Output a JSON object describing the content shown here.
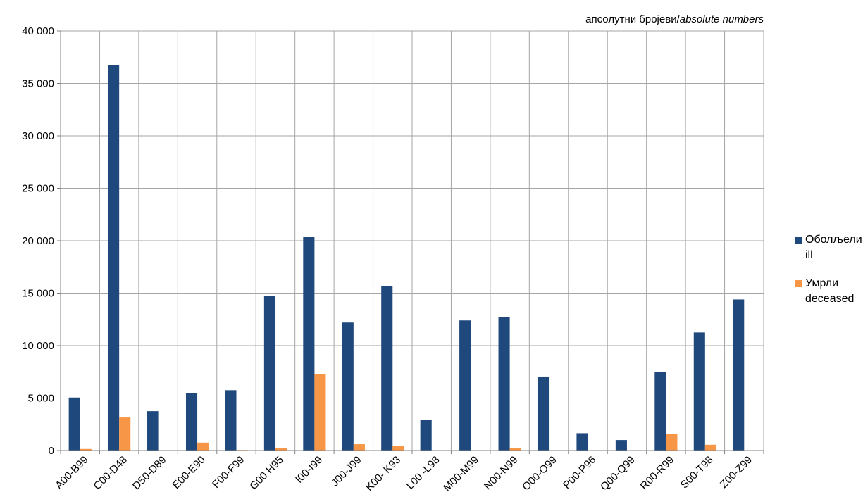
{
  "chart_data": {
    "type": "bar",
    "unit_label_main": "апсолутни бројеви/",
    "unit_label_italic": "absolute numbers",
    "categories": [
      "A00-B99",
      "C00-D48",
      "D50-D89",
      "E00-E90",
      "F00-F99",
      "G00 H95",
      "I00-I99",
      "J00-J99",
      "K00- K93",
      "L00 -L98",
      "M00-M99",
      "N00-N99",
      "O00-O99",
      "P00-P96",
      "Q00-Q99",
      "R00-R99",
      "S00-T98",
      "Z00-Z99"
    ],
    "series": [
      {
        "name": "Оболљели ill",
        "label_line1": "Оболљели",
        "label_line2": "ill",
        "color": "#1f497d",
        "values": [
          5050,
          36750,
          3750,
          5450,
          5750,
          14750,
          20350,
          12200,
          15650,
          2900,
          12400,
          12750,
          7050,
          1650,
          1000,
          7450,
          11250,
          14400
        ]
      },
      {
        "name": "Умрли deceased",
        "label_line1": "Умрли",
        "label_line2": "deceased",
        "color": "#f79646",
        "values": [
          150,
          3150,
          0,
          750,
          50,
          200,
          7250,
          600,
          450,
          0,
          0,
          200,
          0,
          0,
          0,
          1550,
          550,
          0
        ]
      }
    ],
    "yticks": [
      "0",
      "5 000",
      "10 000",
      "15 000",
      "20 000",
      "25 000",
      "30 000",
      "35 000",
      "40 000"
    ],
    "ylim": [
      0,
      40000
    ],
    "grid": true,
    "legend_position": "right"
  }
}
